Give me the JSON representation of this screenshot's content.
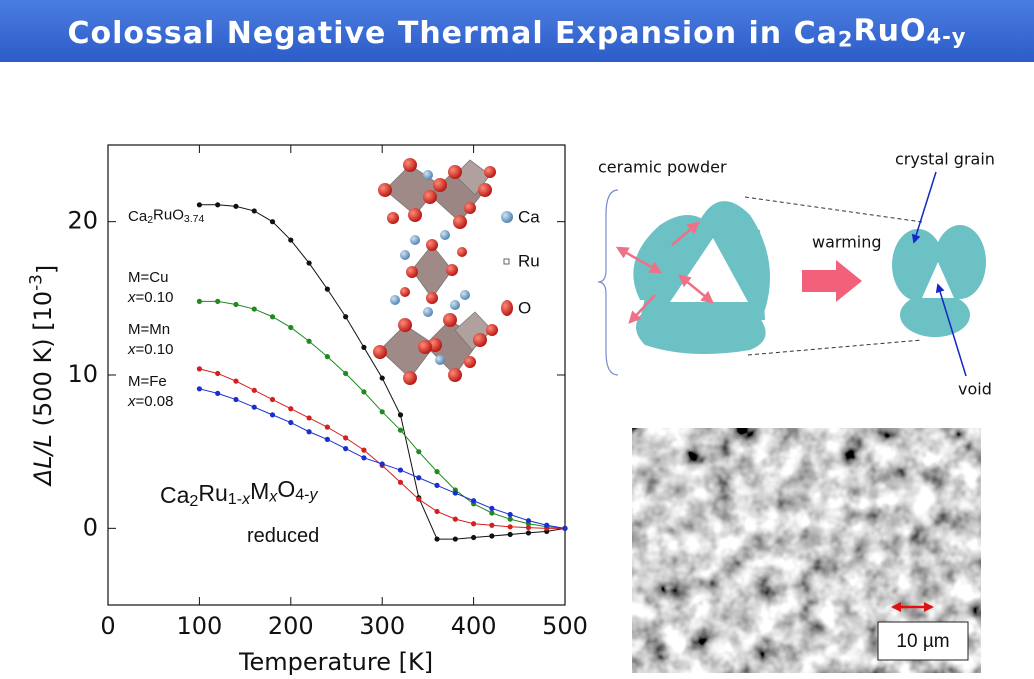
{
  "header": {
    "title": [
      {
        "text": "Colossal Negative Thermal Expansion in Ca"
      },
      {
        "text": "2",
        "style": "sub"
      },
      {
        "text": "RuO"
      },
      {
        "text": "4-y",
        "style": "sub"
      }
    ]
  },
  "chart_data": {
    "type": "line",
    "x_label": "Temperature [K]",
    "y_label": [
      {
        "text": "ΔL/L",
        "style": "italic"
      },
      {
        "text": " (500 K) [10"
      },
      {
        "text": "-3",
        "style": "sup"
      },
      {
        "text": "]"
      }
    ],
    "x": [
      100,
      120,
      140,
      160,
      180,
      200,
      220,
      240,
      260,
      280,
      300,
      320,
      340,
      360,
      380,
      400,
      420,
      440,
      460,
      480,
      500
    ],
    "series": [
      {
        "name": [
          {
            "text": "Ca"
          },
          {
            "text": "2",
            "style": "sub"
          },
          {
            "text": "RuO"
          },
          {
            "text": "3.74",
            "style": "sub"
          }
        ],
        "color": "#111111",
        "values": [
          21.1,
          21.1,
          21.0,
          20.7,
          20.0,
          18.8,
          17.3,
          15.6,
          13.8,
          11.8,
          9.8,
          7.4,
          2.0,
          -0.7,
          -0.7,
          -0.6,
          -0.5,
          -0.4,
          -0.3,
          -0.2,
          0
        ]
      },
      {
        "name": [
          {
            "text": "M=Cu"
          }
        ],
        "note": [
          {
            "text": "x",
            "style": "italic"
          },
          {
            "text": "=0.10"
          }
        ],
        "color": "#1f8a1f",
        "values": [
          14.8,
          14.8,
          14.6,
          14.3,
          13.8,
          13.1,
          12.2,
          11.2,
          10.1,
          8.9,
          7.6,
          6.4,
          5.0,
          3.7,
          2.5,
          1.6,
          1.0,
          0.6,
          0.3,
          0.1,
          0
        ]
      },
      {
        "name": [
          {
            "text": "M=Mn"
          }
        ],
        "note": [
          {
            "text": "x",
            "style": "italic"
          },
          {
            "text": "=0.10"
          }
        ],
        "color": "#d42020",
        "values": [
          10.4,
          10.1,
          9.6,
          9.0,
          8.4,
          7.8,
          7.2,
          6.6,
          5.9,
          5.1,
          4.1,
          3.0,
          1.9,
          1.1,
          0.6,
          0.3,
          0.2,
          0.1,
          0.05,
          0,
          0
        ]
      },
      {
        "name": [
          {
            "text": "M=Fe"
          }
        ],
        "note": [
          {
            "text": "x",
            "style": "italic"
          },
          {
            "text": "=0.08"
          }
        ],
        "color": "#1a2fd0",
        "values": [
          9.1,
          8.8,
          8.4,
          7.9,
          7.4,
          6.9,
          6.3,
          5.8,
          5.2,
          4.6,
          4.2,
          3.8,
          3.3,
          2.8,
          2.3,
          1.8,
          1.3,
          0.9,
          0.5,
          0.2,
          0
        ]
      }
    ],
    "xlim": [
      0,
      500
    ],
    "xticks": [
      0,
      100,
      200,
      300,
      400,
      500
    ],
    "ylim": [
      -5,
      25
    ],
    "yticks": [
      0,
      10,
      20
    ],
    "annotations": [
      [
        {
          "text": "Ca"
        },
        {
          "text": "2",
          "style": "sub"
        },
        {
          "text": "Ru"
        },
        {
          "text": "1-",
          "style": "sub"
        },
        {
          "text": "x",
          "style": "subitalic"
        },
        {
          "text": "M"
        },
        {
          "text": "x",
          "style": "subitalic"
        },
        {
          "text": "O"
        },
        {
          "text": "4-",
          "style": "sub"
        },
        {
          "text": "y",
          "style": "subitalic"
        }
      ],
      [
        {
          "text": "reduced"
        }
      ]
    ]
  },
  "crystal_legend": [
    "Ca",
    "Ru",
    "O"
  ],
  "schematic": {
    "powder": "ceramic powder",
    "process": "warming",
    "grain": "crystal grain",
    "void": "void"
  },
  "micrograph": {
    "scale_bar": "10 µm"
  }
}
